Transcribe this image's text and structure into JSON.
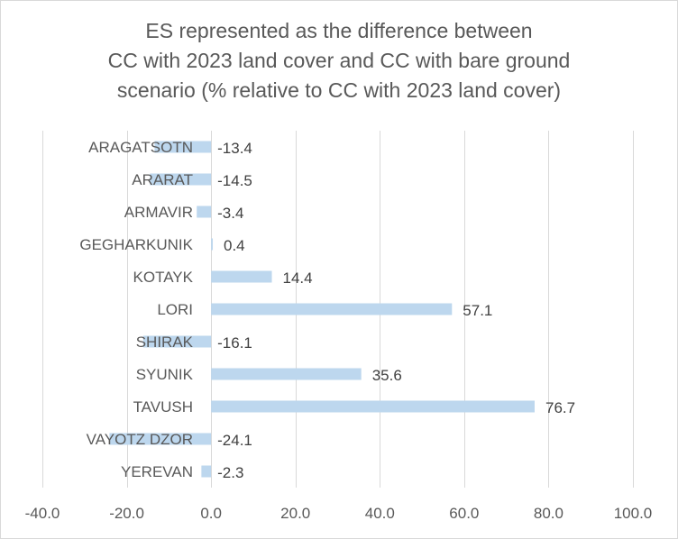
{
  "chart_data": {
    "type": "bar",
    "orientation": "horizontal",
    "title_lines": [
      "ES represented as the difference between",
      "CC with 2023 land cover and CC with bare  ground",
      "scenario (% relative to CC with 2023 land cover)"
    ],
    "categories": [
      "ARAGATSOTN",
      "ARARAT",
      "ARMAVIR",
      "GEGHARKUNIK",
      "KOTAYK",
      "LORI",
      "SHIRAK",
      "SYUNIK",
      "TAVUSH",
      "VAYOTZ DZOR",
      "YEREVAN"
    ],
    "values": [
      -13.4,
      -14.5,
      -3.4,
      0.4,
      14.4,
      57.1,
      -16.1,
      35.6,
      76.7,
      -24.1,
      -2.3
    ],
    "value_labels": [
      "-13.4",
      "-14.5",
      "-3.4",
      "0.4",
      "14.4",
      "57.1",
      "-16.1",
      "35.6",
      "76.7",
      "-24.1",
      "-2.3"
    ],
    "xlim": [
      -40,
      100
    ],
    "x_ticks": [
      -40,
      -20,
      0,
      20,
      40,
      60,
      80,
      100
    ],
    "x_tick_labels": [
      "-40.0",
      "-20.0",
      "0.0",
      "20.0",
      "40.0",
      "60.0",
      "80.0",
      "100.0"
    ],
    "grid": "vertical",
    "legend": "none",
    "bar_color": "#bdd7ee"
  }
}
